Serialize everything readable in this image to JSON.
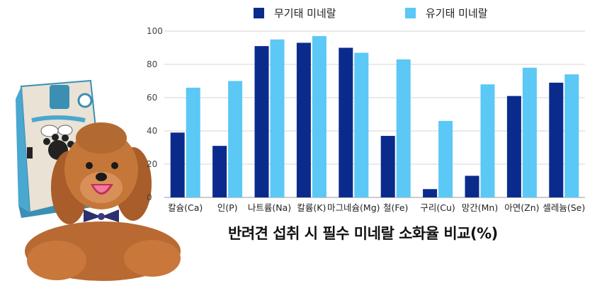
{
  "chart_data": {
    "type": "bar",
    "title": "반려견 섭취 시 필수 미네랄 소화율 비교(%)",
    "categories": [
      "칼슘(Ca)",
      "인(P)",
      "나트륨(Na)",
      "칼륨(K)",
      "마그네슘(Mg)",
      "철(Fe)",
      "구리(Cu)",
      "망간(Mn)",
      "아연(Zn)",
      "셀레늄(Se)"
    ],
    "series": [
      {
        "name": "무기태 미네랄",
        "color": "#0b2b8c",
        "values": [
          39,
          31,
          91,
          93,
          90,
          37,
          5,
          13,
          61,
          69
        ]
      },
      {
        "name": "유기태 미네랄",
        "color": "#5bc8f5",
        "values": [
          66,
          70,
          95,
          97,
          87,
          83,
          46,
          68,
          78,
          74
        ]
      }
    ],
    "yticks": [
      0,
      20,
      40,
      60,
      80,
      100
    ],
    "ylim": [
      0,
      100
    ],
    "grid": true,
    "legend_position": "top"
  }
}
